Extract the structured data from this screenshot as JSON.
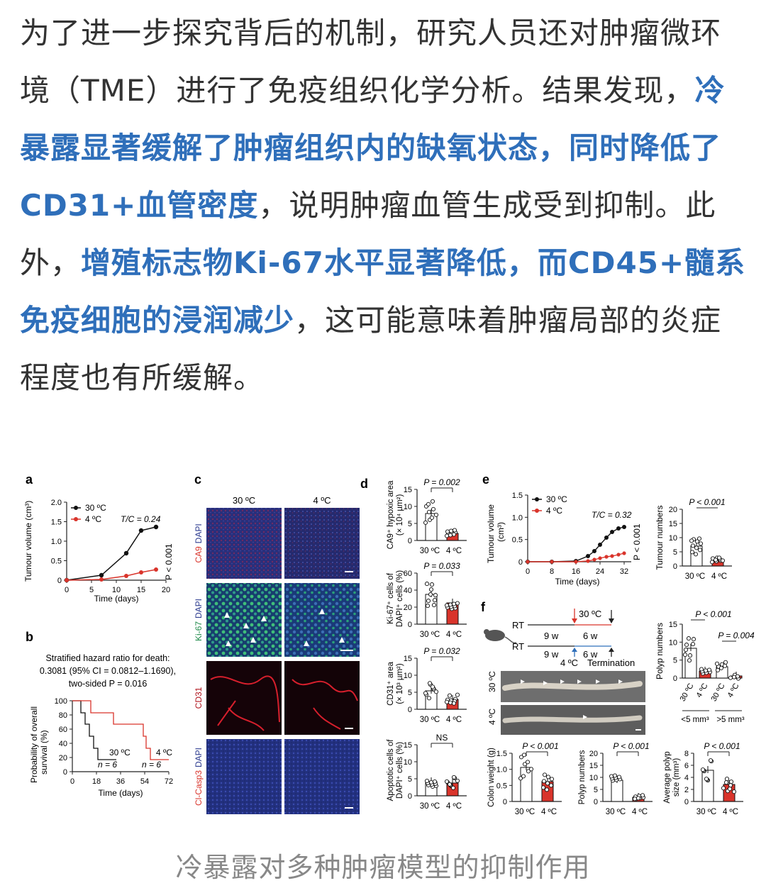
{
  "article": {
    "p1": "为了进一步探究背后的机制，研究人员还对肿瘤微环境（TME）进行了免疫组织化学分析。结果发现，",
    "h1": "冷暴露显著缓解了肿瘤组织内的缺氧状态，同时降低了CD31+血管密度",
    "p2": "，说明肿瘤血管生成受到抑制。此外，",
    "h2": "增殖标志物Ki-67水平显著降低，而CD45+髓系免疫细胞的浸润减少",
    "p3": "，这可能意味着肿瘤局部的炎症程度也有所缓解。"
  },
  "figure": {
    "panel_a": {
      "letter": "a",
      "ylabel": "Tumour volume (cm³)",
      "xlabel": "Time (days)",
      "yticks": [
        "0",
        "0.5",
        "1.0",
        "1.5",
        "2.0"
      ],
      "xticks": [
        "0",
        "5",
        "10",
        "15",
        "20"
      ],
      "legend_30": "30 ºC",
      "legend_4": "4 ºC",
      "tc": "T/C = 0.24",
      "pval": "P < 0.001"
    },
    "panel_b": {
      "letter": "b",
      "line1": "Stratified hazard ratio for death:",
      "line2": "0.3081 (95% CI = 0.0812–1.1690),",
      "line3": "two-sided P = 0.016",
      "ylabel1": "Probability of overall",
      "ylabel2": "survival (%)",
      "xlabel": "Time (days)",
      "yticks": [
        "0",
        "20",
        "40",
        "60",
        "80",
        "100"
      ],
      "xticks": [
        "0",
        "18",
        "36",
        "54",
        "72"
      ],
      "label_30": "30 ºC",
      "label_4": "4 ºC",
      "n_30": "n = 6",
      "n_4": "n = 6"
    },
    "panel_c": {
      "letter": "c",
      "col_30": "30 ºC",
      "col_4": "4 ºC",
      "rows": [
        "CA9 DAPI",
        "Ki-67 DAPI",
        "CD31",
        "Cl-Casp3 DAPI"
      ]
    },
    "panel_d": {
      "letter": "d",
      "plots": [
        {
          "ylabel1": "CA9⁺ hypoxic area",
          "ylabel2": "(× 10⁴ µm²)",
          "p": "P = 0.002",
          "yticks": [
            "0",
            "5",
            "10",
            "15"
          ]
        },
        {
          "ylabel1": "Ki-67⁺ cells of",
          "ylabel2": "DAPI⁺ cells (%)",
          "p": "P = 0.033",
          "yticks": [
            "0",
            "20",
            "40",
            "60"
          ]
        },
        {
          "ylabel1": "CD31⁺ area",
          "ylabel2": "(× 10³ µm²)",
          "p": "P = 0.032",
          "yticks": [
            "0",
            "5",
            "10",
            "15"
          ]
        },
        {
          "ylabel1": "Apoptotic cells of",
          "ylabel2": "DAPI⁺ cells (%)",
          "p": "NS",
          "yticks": [
            "0",
            "5",
            "10",
            "15"
          ]
        }
      ],
      "x30": "30 ºC",
      "x4": "4 ºC"
    },
    "panel_e": {
      "letter": "e",
      "ylabel1": "Tumour volume",
      "ylabel2": "(cm³)",
      "xlabel": "Time (days)",
      "yticks": [
        "0",
        "0.5",
        "1.0",
        "1.5"
      ],
      "xticks": [
        "0",
        "8",
        "16",
        "24",
        "32"
      ],
      "legend_30": "30 ºC",
      "legend_4": "4 ºC",
      "tc": "T/C = 0.32",
      "pval": "P < 0.001",
      "bar_ylabel": "Tumour numbers",
      "bar_p": "P < 0.001",
      "bar_yticks": [
        "0",
        "5",
        "10",
        "15",
        "20"
      ],
      "x30": "30 ºC",
      "x4": "4 ºC"
    },
    "panel_f": {
      "letter": "f",
      "rt": "RT",
      "temp_30": "30 ºC",
      "temp_4": "4 ºC",
      "w9": "9 w",
      "w6": "6 w",
      "termination": "Termination",
      "polyp_ylabel": "Polyp numbers",
      "polyp_p1": "P < 0.001",
      "polyp_p2": "P = 0.004",
      "polyp_yticks": [
        "0",
        "5",
        "10",
        "15"
      ],
      "size_lt": "<5 mm³",
      "size_gt": ">5 mm³",
      "colon_30": "30 ºC",
      "colon_4": "4 ºC",
      "bottom": [
        {
          "ylabel": "Colon weight (g)",
          "p": "P < 0.001",
          "yticks": [
            "0",
            "0.5",
            "1.0",
            "1.5"
          ]
        },
        {
          "ylabel": "Polyp numbers",
          "p": "P < 0.001",
          "yticks": [
            "0",
            "5",
            "10",
            "15",
            "20"
          ]
        },
        {
          "ylabel1": "Average polyp",
          "ylabel2": "size (mm³)",
          "p": "P < 0.001",
          "yticks": [
            "0",
            "2",
            "4",
            "6",
            "8"
          ]
        }
      ],
      "x30": "30 ºC",
      "x4": "4 ºC"
    },
    "colors": {
      "warm": "#111111",
      "cold": "#d9342b",
      "dapi": "#2b3a8f",
      "ki67": "#1f8a4a",
      "cd31": "#b0121b"
    }
  },
  "caption": "冷暴露对多种肿瘤模型的抑制作用"
}
